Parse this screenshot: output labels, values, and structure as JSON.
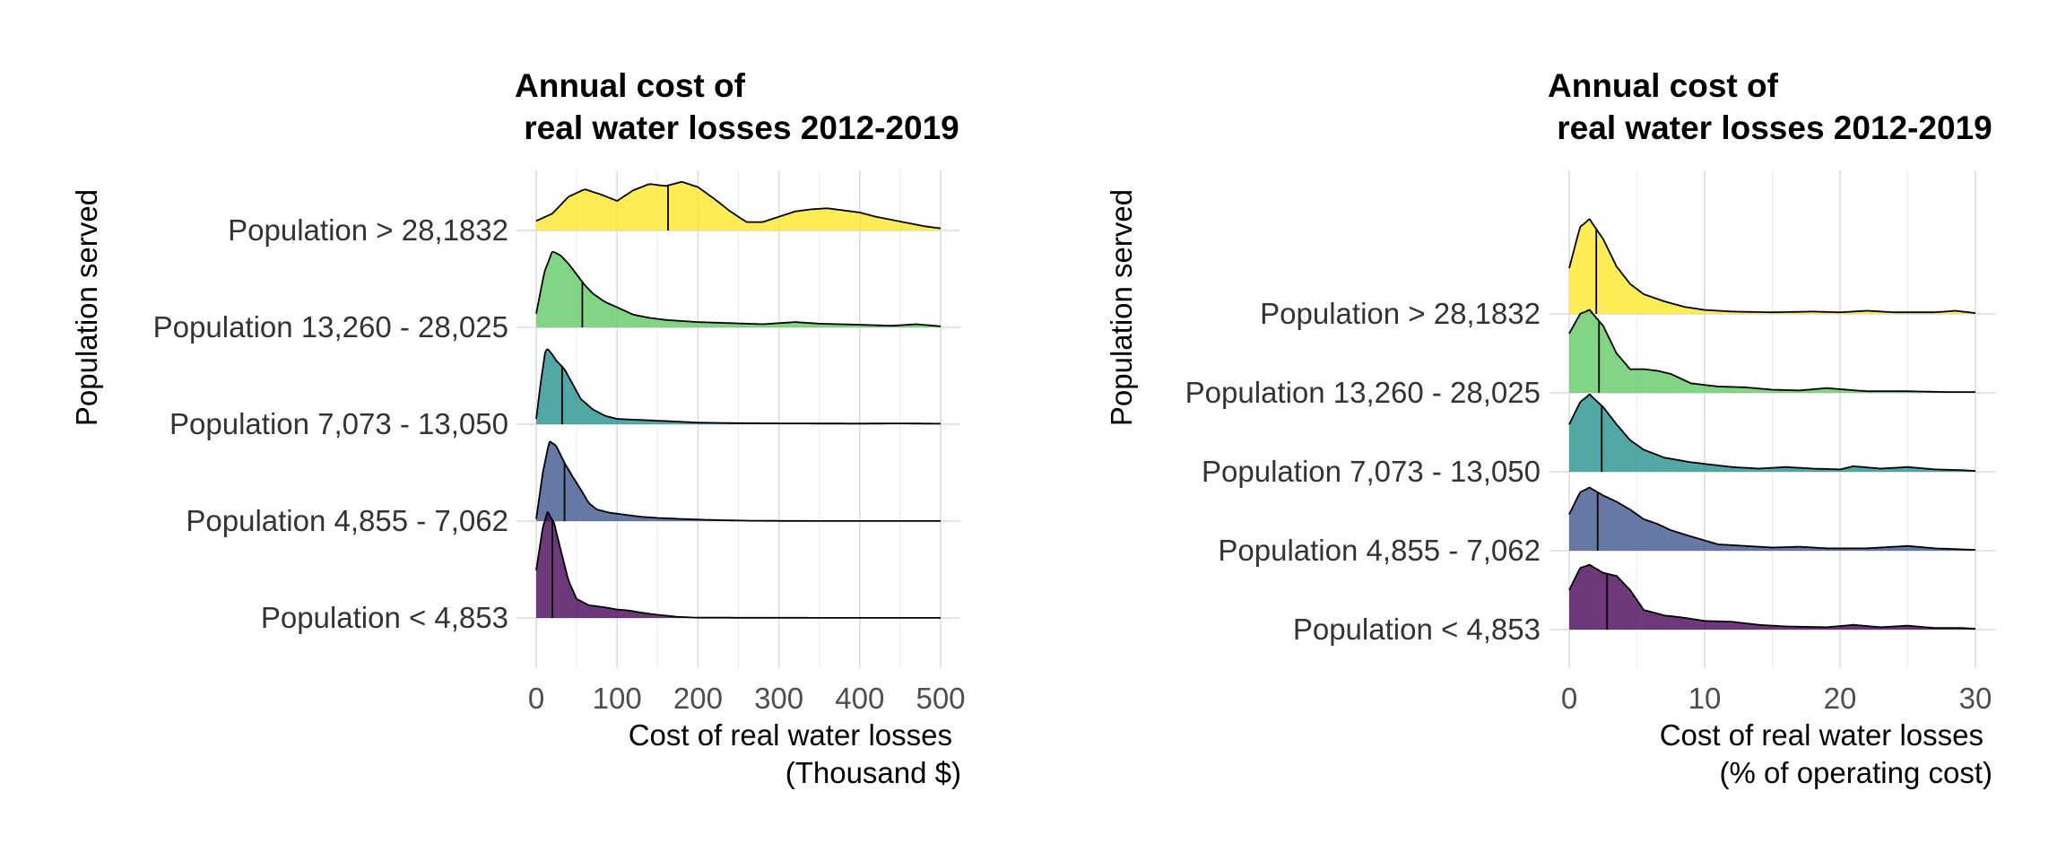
{
  "chart_data": [
    {
      "type": "ridgeline",
      "title_lines": [
        "Annual cost of",
        " real water losses 2012-2019"
      ],
      "xlabel_lines": [
        "Cost of real water losses",
        "(Thousand $)"
      ],
      "ylabel": "Population served",
      "xlim": [
        0,
        500
      ],
      "xticks": [
        0,
        100,
        200,
        300,
        400,
        500
      ],
      "xtick_labels": [
        "0",
        "100",
        "200",
        "300",
        "400",
        "500"
      ],
      "grid": true,
      "categories": [
        "Population < 4,853",
        "Population 4,855 - 7,062",
        "Population 7,073 - 13,050",
        "Population 13,260 - 28,025",
        "Population > 28,1832"
      ],
      "series": [
        {
          "name": "Population < 4,853",
          "color": "#440154",
          "density": [
            [
              0,
              0.45
            ],
            [
              8,
              0.85
            ],
            [
              14,
              1.0
            ],
            [
              22,
              0.9
            ],
            [
              30,
              0.65
            ],
            [
              40,
              0.35
            ],
            [
              50,
              0.18
            ],
            [
              65,
              0.12
            ],
            [
              85,
              0.1
            ],
            [
              100,
              0.08
            ],
            [
              115,
              0.07
            ],
            [
              130,
              0.05
            ],
            [
              150,
              0.03
            ],
            [
              175,
              0.01
            ],
            [
              200,
              0.003
            ],
            [
              250,
              0.002
            ],
            [
              300,
              0.002
            ],
            [
              350,
              0.001
            ],
            [
              400,
              0.001
            ],
            [
              450,
              0.001
            ],
            [
              500,
              0.001
            ]
          ],
          "median": 20
        },
        {
          "name": "Population 4,855 - 7,062",
          "color": "#3b528b",
          "density": [
            [
              0,
              0.02
            ],
            [
              8,
              0.45
            ],
            [
              16,
              0.75
            ],
            [
              24,
              0.72
            ],
            [
              35,
              0.55
            ],
            [
              45,
              0.42
            ],
            [
              55,
              0.3
            ],
            [
              65,
              0.17
            ],
            [
              75,
              0.11
            ],
            [
              90,
              0.08
            ],
            [
              110,
              0.06
            ],
            [
              130,
              0.04
            ],
            [
              150,
              0.03
            ],
            [
              180,
              0.02
            ],
            [
              220,
              0.01
            ],
            [
              260,
              0.004
            ],
            [
              300,
              0.002
            ],
            [
              350,
              0.001
            ],
            [
              400,
              0.001
            ],
            [
              450,
              0.001
            ],
            [
              500,
              0.001
            ]
          ],
          "median": 35
        },
        {
          "name": "Population 7,073 - 13,050",
          "color": "#21908c",
          "density": [
            [
              0,
              0.05
            ],
            [
              6,
              0.42
            ],
            [
              12,
              0.72
            ],
            [
              18,
              0.68
            ],
            [
              25,
              0.6
            ],
            [
              35,
              0.52
            ],
            [
              45,
              0.38
            ],
            [
              55,
              0.24
            ],
            [
              70,
              0.14
            ],
            [
              85,
              0.08
            ],
            [
              100,
              0.05
            ],
            [
              130,
              0.04
            ],
            [
              160,
              0.03
            ],
            [
              200,
              0.015
            ],
            [
              250,
              0.01
            ],
            [
              300,
              0.008
            ],
            [
              350,
              0.007
            ],
            [
              400,
              0.006
            ],
            [
              450,
              0.008
            ],
            [
              500,
              0.005
            ]
          ],
          "median": 32
        },
        {
          "name": "Population 13,260 - 28,025",
          "color": "#5ec962",
          "density": [
            [
              0,
              0.13
            ],
            [
              10,
              0.52
            ],
            [
              20,
              0.72
            ],
            [
              30,
              0.68
            ],
            [
              40,
              0.6
            ],
            [
              50,
              0.5
            ],
            [
              60,
              0.4
            ],
            [
              70,
              0.32
            ],
            [
              85,
              0.24
            ],
            [
              100,
              0.19
            ],
            [
              120,
              0.12
            ],
            [
              140,
              0.09
            ],
            [
              160,
              0.07
            ],
            [
              180,
              0.06
            ],
            [
              200,
              0.05
            ],
            [
              240,
              0.04
            ],
            [
              280,
              0.03
            ],
            [
              320,
              0.05
            ],
            [
              350,
              0.035
            ],
            [
              400,
              0.025
            ],
            [
              440,
              0.015
            ],
            [
              470,
              0.03
            ],
            [
              500,
              0.01
            ]
          ],
          "median": 57
        },
        {
          "name": "Population > 28,1832",
          "color": "#fde725",
          "density": [
            [
              0,
              0.09
            ],
            [
              20,
              0.16
            ],
            [
              40,
              0.32
            ],
            [
              60,
              0.39
            ],
            [
              80,
              0.34
            ],
            [
              100,
              0.28
            ],
            [
              120,
              0.38
            ],
            [
              140,
              0.44
            ],
            [
              160,
              0.42
            ],
            [
              180,
              0.46
            ],
            [
              200,
              0.41
            ],
            [
              220,
              0.3
            ],
            [
              240,
              0.18
            ],
            [
              260,
              0.08
            ],
            [
              280,
              0.08
            ],
            [
              300,
              0.13
            ],
            [
              320,
              0.18
            ],
            [
              340,
              0.2
            ],
            [
              360,
              0.21
            ],
            [
              380,
              0.19
            ],
            [
              400,
              0.17
            ],
            [
              420,
              0.13
            ],
            [
              440,
              0.1
            ],
            [
              460,
              0.07
            ],
            [
              480,
              0.04
            ],
            [
              500,
              0.02
            ]
          ],
          "median": 163
        }
      ]
    },
    {
      "type": "ridgeline",
      "title_lines": [
        "Annual cost of",
        " real water losses 2012-2019"
      ],
      "xlabel_lines": [
        "Cost of real water losses",
        "(% of operating cost)"
      ],
      "ylabel": "Population served",
      "xlim": [
        0,
        30
      ],
      "xticks": [
        0,
        10,
        20,
        30
      ],
      "xtick_labels": [
        "0",
        "10",
        "20",
        "30"
      ],
      "grid": true,
      "categories": [
        "Population < 4,853",
        "Population 4,855 - 7,062",
        "Population 7,073 - 13,050",
        "Population 13,260 - 28,025",
        "Population > 28,1832"
      ],
      "series": [
        {
          "name": "Population < 4,853",
          "color": "#440154",
          "density": [
            [
              0,
              0.5
            ],
            [
              0.8,
              0.78
            ],
            [
              1.5,
              0.82
            ],
            [
              2.5,
              0.72
            ],
            [
              3.5,
              0.68
            ],
            [
              4.5,
              0.5
            ],
            [
              5.5,
              0.25
            ],
            [
              7,
              0.18
            ],
            [
              8.5,
              0.15
            ],
            [
              10,
              0.11
            ],
            [
              12,
              0.1
            ],
            [
              14,
              0.06
            ],
            [
              16,
              0.04
            ],
            [
              19,
              0.03
            ],
            [
              21,
              0.06
            ],
            [
              23,
              0.03
            ],
            [
              25,
              0.05
            ],
            [
              27,
              0.02
            ],
            [
              29,
              0.02
            ],
            [
              30,
              0.01
            ]
          ],
          "median": 2.8
        },
        {
          "name": "Population 4,855 - 7,062",
          "color": "#3b528b",
          "density": [
            [
              0,
              0.46
            ],
            [
              0.8,
              0.74
            ],
            [
              1.5,
              0.8
            ],
            [
              2.5,
              0.7
            ],
            [
              3.5,
              0.62
            ],
            [
              4.5,
              0.52
            ],
            [
              5.5,
              0.4
            ],
            [
              6.5,
              0.34
            ],
            [
              7.5,
              0.26
            ],
            [
              9,
              0.18
            ],
            [
              11,
              0.08
            ],
            [
              13,
              0.06
            ],
            [
              15,
              0.04
            ],
            [
              17,
              0.05
            ],
            [
              19,
              0.03
            ],
            [
              22,
              0.03
            ],
            [
              25,
              0.06
            ],
            [
              27,
              0.03
            ],
            [
              30,
              0.01
            ]
          ],
          "median": 2.1
        },
        {
          "name": "Population 7,073 - 13,050",
          "color": "#21908c",
          "density": [
            [
              0,
              0.6
            ],
            [
              0.8,
              0.88
            ],
            [
              1.5,
              0.98
            ],
            [
              2.5,
              0.82
            ],
            [
              3.5,
              0.6
            ],
            [
              4.5,
              0.4
            ],
            [
              5.5,
              0.28
            ],
            [
              7,
              0.18
            ],
            [
              9,
              0.12
            ],
            [
              10,
              0.1
            ],
            [
              12,
              0.06
            ],
            [
              14,
              0.04
            ],
            [
              16,
              0.06
            ],
            [
              18,
              0.04
            ],
            [
              20,
              0.03
            ],
            [
              21,
              0.07
            ],
            [
              23,
              0.04
            ],
            [
              25,
              0.06
            ],
            [
              27,
              0.03
            ],
            [
              29,
              0.02
            ],
            [
              30,
              0.01
            ]
          ],
          "median": 2.4
        },
        {
          "name": "Population 13,260 - 28,025",
          "color": "#5ec962",
          "density": [
            [
              0,
              0.75
            ],
            [
              0.8,
              1.0
            ],
            [
              1.5,
              1.05
            ],
            [
              2.5,
              0.85
            ],
            [
              3.5,
              0.5
            ],
            [
              4.5,
              0.3
            ],
            [
              5.5,
              0.3
            ],
            [
              6.5,
              0.28
            ],
            [
              7.5,
              0.24
            ],
            [
              9,
              0.12
            ],
            [
              11,
              0.08
            ],
            [
              13,
              0.07
            ],
            [
              15,
              0.04
            ],
            [
              17,
              0.03
            ],
            [
              19,
              0.06
            ],
            [
              20.5,
              0.04
            ],
            [
              22,
              0.02
            ],
            [
              25,
              0.02
            ],
            [
              28,
              0.01
            ],
            [
              30,
              0.01
            ]
          ],
          "median": 2.2
        },
        {
          "name": "Population > 28,1832",
          "color": "#fde725",
          "density": [
            [
              0,
              0.58
            ],
            [
              0.8,
              1.1
            ],
            [
              1.5,
              1.2
            ],
            [
              2.5,
              0.95
            ],
            [
              3.5,
              0.6
            ],
            [
              4.5,
              0.38
            ],
            [
              5.5,
              0.25
            ],
            [
              7,
              0.16
            ],
            [
              8.5,
              0.09
            ],
            [
              10,
              0.05
            ],
            [
              12,
              0.03
            ],
            [
              15,
              0.02
            ],
            [
              18,
              0.03
            ],
            [
              20,
              0.02
            ],
            [
              22,
              0.04
            ],
            [
              24,
              0.02
            ],
            [
              27,
              0.02
            ],
            [
              28.5,
              0.04
            ],
            [
              30,
              0.01
            ]
          ],
          "median": 2.0
        }
      ]
    }
  ]
}
